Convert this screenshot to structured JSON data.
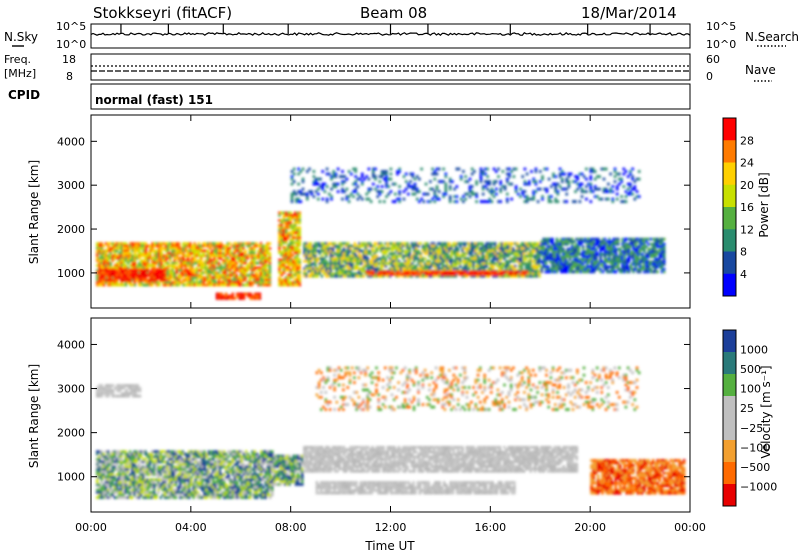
{
  "header": {
    "station": "Stokkseyri (fitACF)",
    "beam": "Beam 08",
    "date": "18/Mar/2014"
  },
  "noise_panel": {
    "left_label": "N.Sky",
    "left_ticks": [
      "10^5",
      "10^0"
    ],
    "right_label": "N.Search",
    "right_ticks": [
      "10^5",
      "10^0"
    ]
  },
  "freq_panel": {
    "left_label_1": "Freq.",
    "left_label_2": "[MHz]",
    "left_ticks": [
      "18",
      "8"
    ],
    "right_label": "Nave",
    "right_ticks": [
      "60",
      "0"
    ]
  },
  "cpid": {
    "label": "CPID",
    "value": "normal (fast) 151"
  },
  "chart_data": [
    {
      "type": "heatmap",
      "panel": "power",
      "ylabel": "Slant Range [km]",
      "ylim": [
        200,
        4600
      ],
      "yticks": [
        "1000",
        "2000",
        "3000",
        "4000"
      ],
      "xlim_hours": [
        0,
        24
      ],
      "colorbar_label": "Power [dB]",
      "colorbar_ticks": [
        "28",
        "24",
        "20",
        "16",
        "12",
        "8",
        "4"
      ],
      "colorbar_colors": [
        "#ff0000",
        "#ff7b00",
        "#ffd000",
        "#c8e000",
        "#55b040",
        "#2a8c6e",
        "#1848a0",
        "#0000ff"
      ],
      "regions": [
        {
          "t0": 0.2,
          "t1": 7.2,
          "r0": 700,
          "r1": 1700,
          "level": "strong"
        },
        {
          "t0": 0.3,
          "t1": 3.0,
          "r0": 800,
          "r1": 1100,
          "level": "max"
        },
        {
          "t0": 5.0,
          "t1": 6.8,
          "r0": 400,
          "r1": 550,
          "level": "max"
        },
        {
          "t0": 7.5,
          "t1": 8.4,
          "r0": 700,
          "r1": 2400,
          "level": "strong"
        },
        {
          "t0": 8.5,
          "t1": 18.0,
          "r0": 900,
          "r1": 1700,
          "level": "medium"
        },
        {
          "t0": 11.0,
          "t1": 17.5,
          "r0": 950,
          "r1": 1050,
          "level": "max"
        },
        {
          "t0": 18.0,
          "t1": 23.0,
          "r0": 1000,
          "r1": 1800,
          "level": "weak"
        },
        {
          "t0": 8.0,
          "t1": 22.0,
          "r0": 2600,
          "r1": 3400,
          "level": "sparse"
        }
      ]
    },
    {
      "type": "heatmap",
      "panel": "velocity",
      "ylabel": "Slant Range [km]",
      "ylim": [
        200,
        4600
      ],
      "yticks": [
        "1000",
        "2000",
        "3000",
        "4000"
      ],
      "xlim_hours": [
        0,
        24
      ],
      "xticks": [
        "00:00",
        "04:00",
        "08:00",
        "12:00",
        "16:00",
        "20:00",
        "00:00"
      ],
      "xlabel": "Time UT",
      "colorbar_label": "Velocity [m s⁻¹]",
      "colorbar_ticks": [
        "1000",
        "500",
        "100",
        "25",
        "−25",
        "−100",
        "−500",
        "−1000"
      ],
      "colorbar_colors": [
        "#1c3f9a",
        "#2a7a7a",
        "#55b040",
        "#c0c0c0",
        "#c0c0c0",
        "#f3a030",
        "#ff6a00",
        "#e80000"
      ],
      "regions": [
        {
          "t0": 0.2,
          "t1": 7.3,
          "r0": 500,
          "r1": 1600,
          "level": "positive"
        },
        {
          "t0": 7.3,
          "t1": 8.5,
          "r0": 800,
          "r1": 1500,
          "level": "positive"
        },
        {
          "t0": 8.5,
          "t1": 19.5,
          "r0": 1100,
          "r1": 1700,
          "level": "ground"
        },
        {
          "t0": 9.0,
          "t1": 17.0,
          "r0": 600,
          "r1": 900,
          "level": "ground"
        },
        {
          "t0": 20.0,
          "t1": 23.8,
          "r0": 600,
          "r1": 1400,
          "level": "negative"
        },
        {
          "t0": 0.2,
          "t1": 2.0,
          "r0": 2800,
          "r1": 3100,
          "level": "ground"
        },
        {
          "t0": 9.0,
          "t1": 22.0,
          "r0": 2500,
          "r1": 3500,
          "level": "sparse"
        }
      ]
    }
  ]
}
